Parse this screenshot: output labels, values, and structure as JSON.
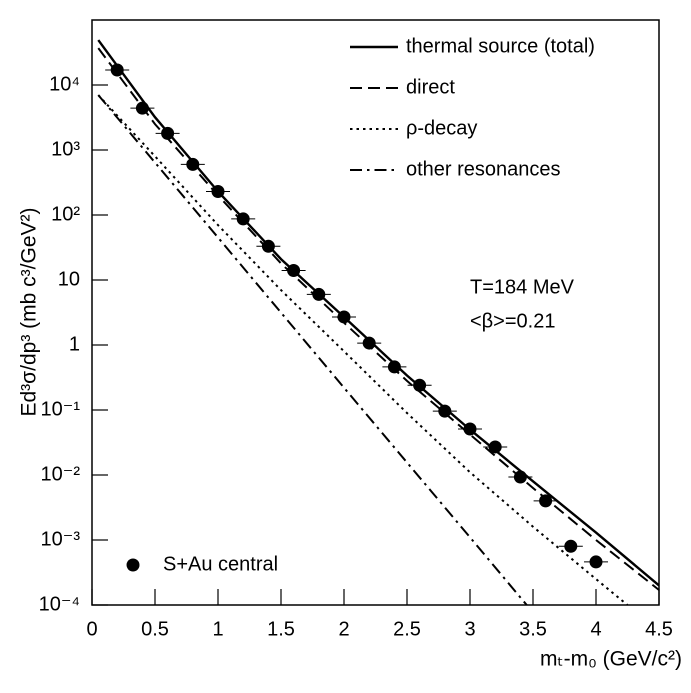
{
  "chart_data": {
    "type": "scatter",
    "xlabel": "mₜ-m₀ (GeV/c²)",
    "ylabel": "Ed³σ/dp³ (mb c³/GeV²)",
    "annotations": [
      "T=184 MeV",
      "<β>=0.21"
    ],
    "xlim": [
      0,
      4.5
    ],
    "xticks": [
      0,
      0.5,
      1,
      1.5,
      2,
      2.5,
      3,
      3.5,
      4,
      4.5
    ],
    "ylim": [
      0.0001,
      100000
    ],
    "ylog": true,
    "yticks": [
      {
        "value": 0.0001,
        "label": "10⁻⁴"
      },
      {
        "value": 0.001,
        "label": "10⁻³"
      },
      {
        "value": 0.01,
        "label": "10⁻²"
      },
      {
        "value": 0.1,
        "label": "10⁻¹"
      },
      1,
      10,
      {
        "value": 100,
        "label": "10²"
      },
      {
        "value": 1000,
        "label": "10³"
      },
      {
        "value": 10000,
        "label": "10⁴"
      }
    ],
    "legend": "top-right",
    "series": [
      {
        "name": "S+Au central",
        "color": "#000000",
        "style": "marker",
        "x": [
          0.2,
          0.4,
          0.6,
          0.8,
          1.0,
          1.2,
          1.4,
          1.6,
          1.8,
          2.0,
          2.2,
          2.4,
          2.6,
          2.8,
          3.0,
          3.2,
          3.4,
          3.6,
          3.8,
          4.0
        ],
        "values": [
          17000,
          4400,
          1800,
          600,
          230,
          87,
          33,
          14,
          6,
          2.7,
          1.07,
          0.46,
          0.24,
          0.096,
          0.051,
          0.027,
          0.0093,
          0.004,
          0.0008,
          0.00046
        ]
      },
      {
        "name": "thermal source (total)",
        "color": "#000000",
        "style": "solid",
        "x": [
          0.05,
          0.5,
          1,
          1.5,
          2,
          2.5,
          3,
          3.5,
          4,
          4.5
        ],
        "values": [
          49000,
          3200,
          230,
          21,
          2.7,
          0.34,
          0.05,
          0.008,
          0.0013,
          0.0002
        ]
      },
      {
        "name": "direct",
        "color": "#000000",
        "style": "dashed",
        "x": [
          0.05,
          0.5,
          1,
          1.5,
          2,
          2.5,
          3,
          3.5,
          4,
          4.5
        ],
        "values": [
          37000,
          2500,
          200,
          18,
          2.2,
          0.28,
          0.042,
          0.0063,
          0.001,
          0.00017
        ]
      },
      {
        "name": "ρ-decay",
        "color": "#000000",
        "style": "dotted",
        "x": [
          0.05,
          0.5,
          1,
          1.5,
          2,
          2.5,
          3,
          3.5,
          4,
          4.25
        ],
        "values": [
          7000,
          800,
          70,
          7,
          0.8,
          0.09,
          0.011,
          0.0016,
          0.00025,
          0.0001
        ]
      },
      {
        "name": "other resonances",
        "color": "#000000",
        "style": "dashdot",
        "x": [
          0.05,
          1,
          2,
          3,
          3.45
        ],
        "values": [
          7000,
          45,
          0.22,
          0.0011,
          0.0001
        ]
      }
    ]
  }
}
